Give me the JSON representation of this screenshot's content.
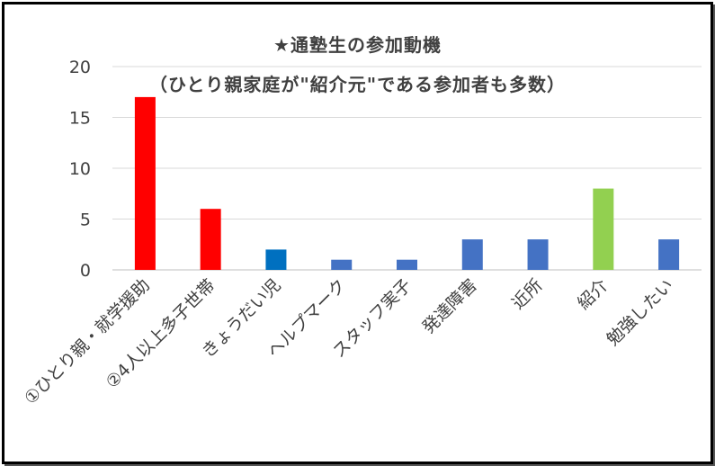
{
  "chart_data": {
    "type": "bar",
    "title": "★通塾生の参加動機",
    "subtitle": "（ひとり親家庭が\"紹介元\"である参加者も多数）",
    "categories": [
      "①ひとり親・就学援助",
      "②4人以上多子世帯",
      "きょうだい児",
      "ヘルプマーク",
      "スタッフ実子",
      "発達障害",
      "近所",
      "紹介",
      "勉強したい"
    ],
    "values": [
      17,
      6,
      2,
      1,
      1,
      3,
      3,
      8,
      3
    ],
    "bar_colors": [
      "#ff0000",
      "#ff0000",
      "#0070c0",
      "#4472c4",
      "#4472c4",
      "#4472c4",
      "#4472c4",
      "#92d050",
      "#4472c4"
    ],
    "yticks": [
      "0",
      "5",
      "10",
      "15",
      "20"
    ],
    "ylim": [
      0,
      20
    ],
    "grid": true,
    "legend": "none",
    "xlabel": "",
    "ylabel": ""
  }
}
